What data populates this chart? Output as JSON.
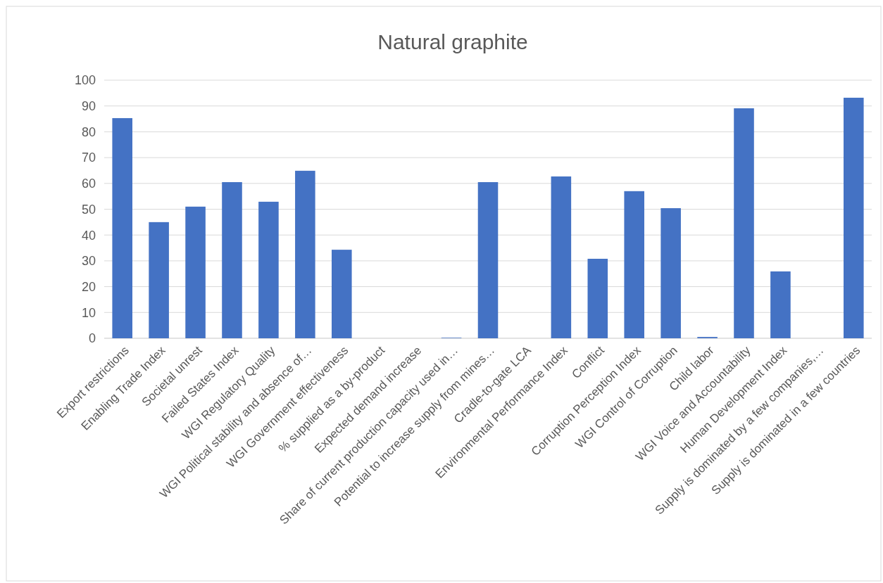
{
  "chart_data": {
    "type": "bar",
    "title": "Natural graphite",
    "categories": [
      "Export restrictions",
      "Enabling Trade Index",
      "Societal unrest",
      "Failed States Index",
      "WGI Regulatory Quality",
      "WGI Political stability and absence of…",
      "WGI Government effectiveness",
      "% supplied as a by-product",
      "Expected demand increase",
      "Share of current production capacity used in…",
      "Potential to increase supply from mines…",
      "Cradle-to-gate LCA",
      "Environmental Performance Index",
      "Conflict",
      "Corruption Perception Index",
      "WGI Control of Corruption",
      "Child labor",
      "WGI Voice and Accountability",
      "Human Development Index",
      "Supply is dominated by a few companies,…",
      "Supply is dominated in a few countries"
    ],
    "values": [
      85.3,
      45,
      51,
      60.5,
      52.9,
      64.9,
      34.3,
      0,
      0,
      0.2,
      60.5,
      0,
      62.7,
      30.8,
      57,
      50.4,
      0.5,
      89.1,
      25.9,
      0,
      93.2
    ],
    "color": "#4472c4",
    "ylim": [
      0,
      100
    ],
    "yticks": [
      0,
      10,
      20,
      30,
      40,
      50,
      60,
      70,
      80,
      90,
      100
    ],
    "grid": "y"
  }
}
